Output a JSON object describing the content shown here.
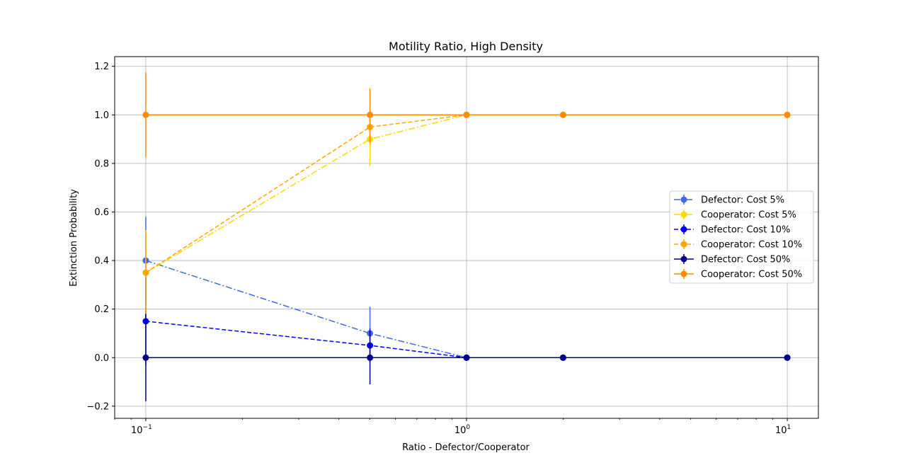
{
  "chart_data": {
    "type": "line",
    "title": "Motility Ratio, High Density",
    "xlabel": "Ratio - Defector/Cooperator",
    "ylabel": "Extinction Probability",
    "xscale": "log",
    "xlim": [
      0.08,
      12.5
    ],
    "ylim": [
      -0.25,
      1.24
    ],
    "xticks": [
      {
        "value": 0.1,
        "base": "10",
        "exp": "−1"
      },
      {
        "value": 1,
        "base": "10",
        "exp": "0"
      },
      {
        "value": 10,
        "base": "10",
        "exp": "1"
      }
    ],
    "yticks": [
      {
        "value": -0.2,
        "label": "−0.2"
      },
      {
        "value": 0.0,
        "label": "0.0"
      },
      {
        "value": 0.2,
        "label": "0.2"
      },
      {
        "value": 0.4,
        "label": "0.4"
      },
      {
        "value": 0.6,
        "label": "0.6"
      },
      {
        "value": 0.8,
        "label": "0.8"
      },
      {
        "value": 1.0,
        "label": "1.0"
      },
      {
        "value": 1.2,
        "label": "1.2"
      }
    ],
    "grid": true,
    "legend_position": "center-right",
    "x": [
      0.1,
      0.5,
      1,
      2,
      10
    ],
    "series": [
      {
        "name": "Defector: Cost 5%",
        "color": "#4169E1",
        "dash": "dashdot",
        "values": [
          0.4,
          0.1,
          0.0,
          0.0,
          0.0
        ],
        "errors": [
          0.18,
          0.11,
          0.0,
          0.0,
          0.0
        ]
      },
      {
        "name": "Cooperator: Cost 5%",
        "color": "#FFD700",
        "dash": "dashdot",
        "values": [
          0.35,
          0.9,
          1.0,
          1.0,
          1.0
        ],
        "errors": [
          0.175,
          0.11,
          0.0,
          0.0,
          0.0
        ]
      },
      {
        "name": "Defector: Cost 10%",
        "color": "#0000FF",
        "dash": "dashed",
        "values": [
          0.15,
          0.05,
          0.0,
          0.0,
          0.0
        ],
        "errors": [
          0.18,
          0.07,
          0.0,
          0.0,
          0.0
        ]
      },
      {
        "name": "Cooperator: Cost 10%",
        "color": "#FFA500",
        "dash": "dashed",
        "values": [
          0.35,
          0.95,
          1.0,
          1.0,
          1.0
        ],
        "errors": [
          0.17,
          0.07,
          0.0,
          0.0,
          0.0
        ]
      },
      {
        "name": "Defector: Cost 50%",
        "color": "#00008B",
        "dash": "solid",
        "values": [
          0.0,
          0.0,
          0.0,
          0.0,
          0.0
        ],
        "errors": [
          0.18,
          0.11,
          0.0,
          0.0,
          0.0
        ]
      },
      {
        "name": "Cooperator: Cost 50%",
        "color": "#FF8C00",
        "dash": "solid",
        "values": [
          1.0,
          1.0,
          1.0,
          1.0,
          1.0
        ],
        "errors": [
          0.175,
          0.11,
          0.0,
          0.0,
          0.0
        ]
      }
    ]
  }
}
